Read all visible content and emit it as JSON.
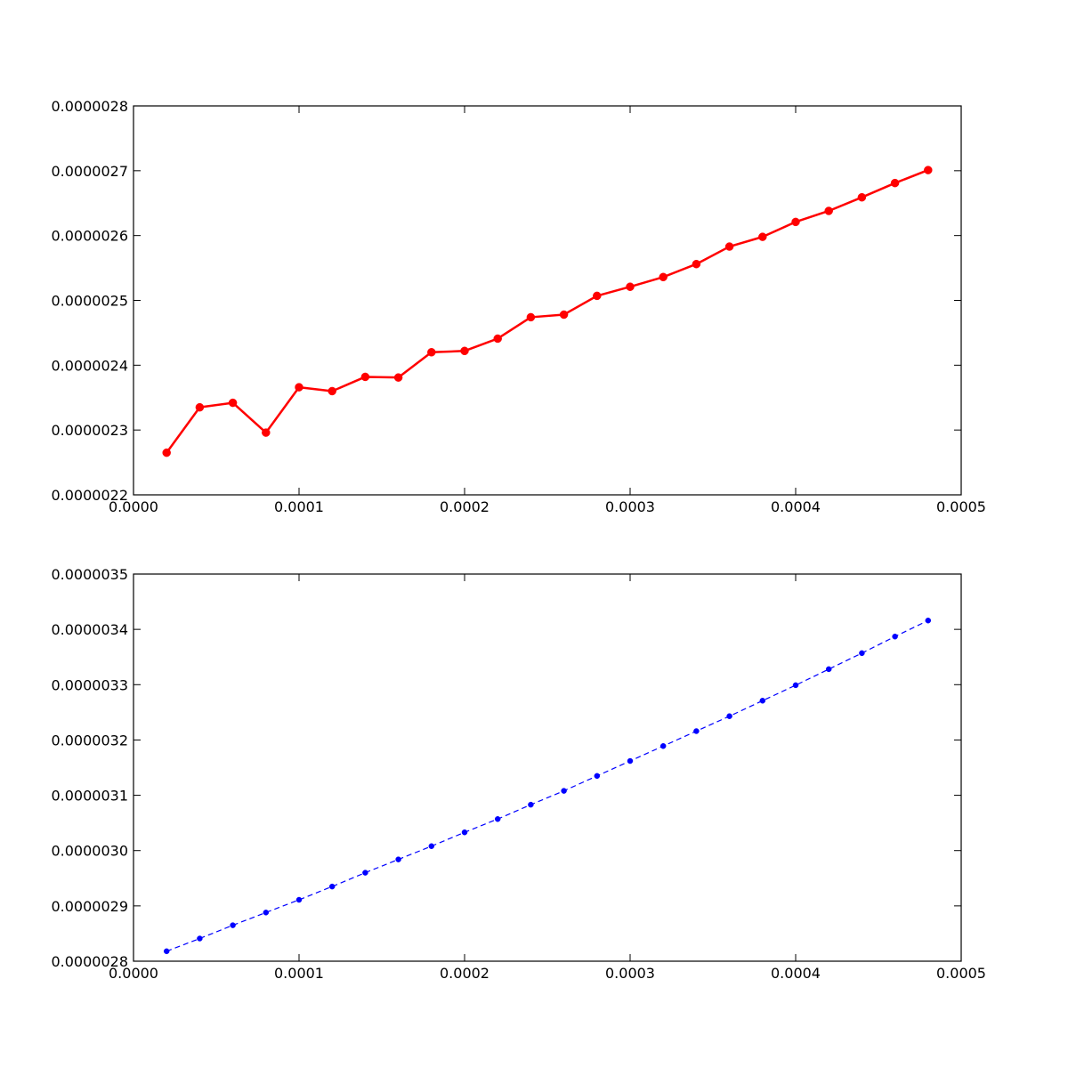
{
  "chart_data": [
    {
      "type": "line",
      "title": "",
      "xlabel": "",
      "ylabel": "",
      "xlim": [
        0.0,
        0.0005
      ],
      "ylim": [
        2.2e-06,
        2.8e-06
      ],
      "x_ticks": [
        0.0,
        0.0001,
        0.0002,
        0.0003,
        0.0004,
        0.0005
      ],
      "x_tick_labels": [
        "0.0000",
        "0.0001",
        "0.0002",
        "0.0003",
        "0.0004",
        "0.0005"
      ],
      "y_ticks": [
        2.2e-06,
        2.3e-06,
        2.4e-06,
        2.5e-06,
        2.6e-06,
        2.7e-06,
        2.8e-06
      ],
      "y_tick_labels": [
        "0.0000022",
        "0.0000023",
        "0.0000024",
        "0.0000025",
        "0.0000026",
        "0.0000027",
        "0.0000028"
      ],
      "grid": false,
      "series": [
        {
          "color": "#ff0000",
          "line_style": "solid",
          "marker": "circle",
          "x": [
            2e-05,
            4e-05,
            6e-05,
            8e-05,
            0.0001,
            0.00012,
            0.00014,
            0.00016,
            0.00018,
            0.0002,
            0.00022,
            0.00024,
            0.00026,
            0.00028,
            0.0003,
            0.00032,
            0.00034,
            0.00036,
            0.00038,
            0.0004,
            0.00042,
            0.00044,
            0.00046,
            0.00048
          ],
          "y": [
            2.265e-06,
            2.335e-06,
            2.342e-06,
            2.296e-06,
            2.366e-06,
            2.36e-06,
            2.382e-06,
            2.381e-06,
            2.42e-06,
            2.422e-06,
            2.441e-06,
            2.474e-06,
            2.478e-06,
            2.507e-06,
            2.521e-06,
            2.536e-06,
            2.556e-06,
            2.583e-06,
            2.598e-06,
            2.621e-06,
            2.638e-06,
            2.659e-06,
            2.681e-06,
            2.701e-06
          ]
        }
      ]
    },
    {
      "type": "line",
      "title": "",
      "xlabel": "",
      "ylabel": "",
      "xlim": [
        0.0,
        0.0005
      ],
      "ylim": [
        2.8e-06,
        3.5e-06
      ],
      "x_ticks": [
        0.0,
        0.0001,
        0.0002,
        0.0003,
        0.0004,
        0.0005
      ],
      "x_tick_labels": [
        "0.0000",
        "0.0001",
        "0.0002",
        "0.0003",
        "0.0004",
        "0.0005"
      ],
      "y_ticks": [
        2.8e-06,
        2.9e-06,
        3e-06,
        3.1e-06,
        3.2e-06,
        3.3e-06,
        3.4e-06,
        3.5e-06
      ],
      "y_tick_labels": [
        "0.0000028",
        "0.0000029",
        "0.0000030",
        "0.0000031",
        "0.0000032",
        "0.0000033",
        "0.0000034",
        "0.0000035"
      ],
      "grid": false,
      "series": [
        {
          "color": "#0000ff",
          "line_style": "dashed",
          "marker": "circle",
          "x": [
            2e-05,
            4e-05,
            6e-05,
            8e-05,
            0.0001,
            0.00012,
            0.00014,
            0.00016,
            0.00018,
            0.0002,
            0.00022,
            0.00024,
            0.00026,
            0.00028,
            0.0003,
            0.00032,
            0.00034,
            0.00036,
            0.00038,
            0.0004,
            0.00042,
            0.00044,
            0.00046,
            0.00048
          ],
          "y": [
            2.818e-06,
            2.841e-06,
            2.865e-06,
            2.888e-06,
            2.911e-06,
            2.935e-06,
            2.96e-06,
            2.984e-06,
            3.008e-06,
            3.033e-06,
            3.057e-06,
            3.083e-06,
            3.108e-06,
            3.135e-06,
            3.162e-06,
            3.189e-06,
            3.216e-06,
            3.243e-06,
            3.271e-06,
            3.299e-06,
            3.328e-06,
            3.357e-06,
            3.387e-06,
            3.416e-06
          ]
        }
      ]
    }
  ]
}
